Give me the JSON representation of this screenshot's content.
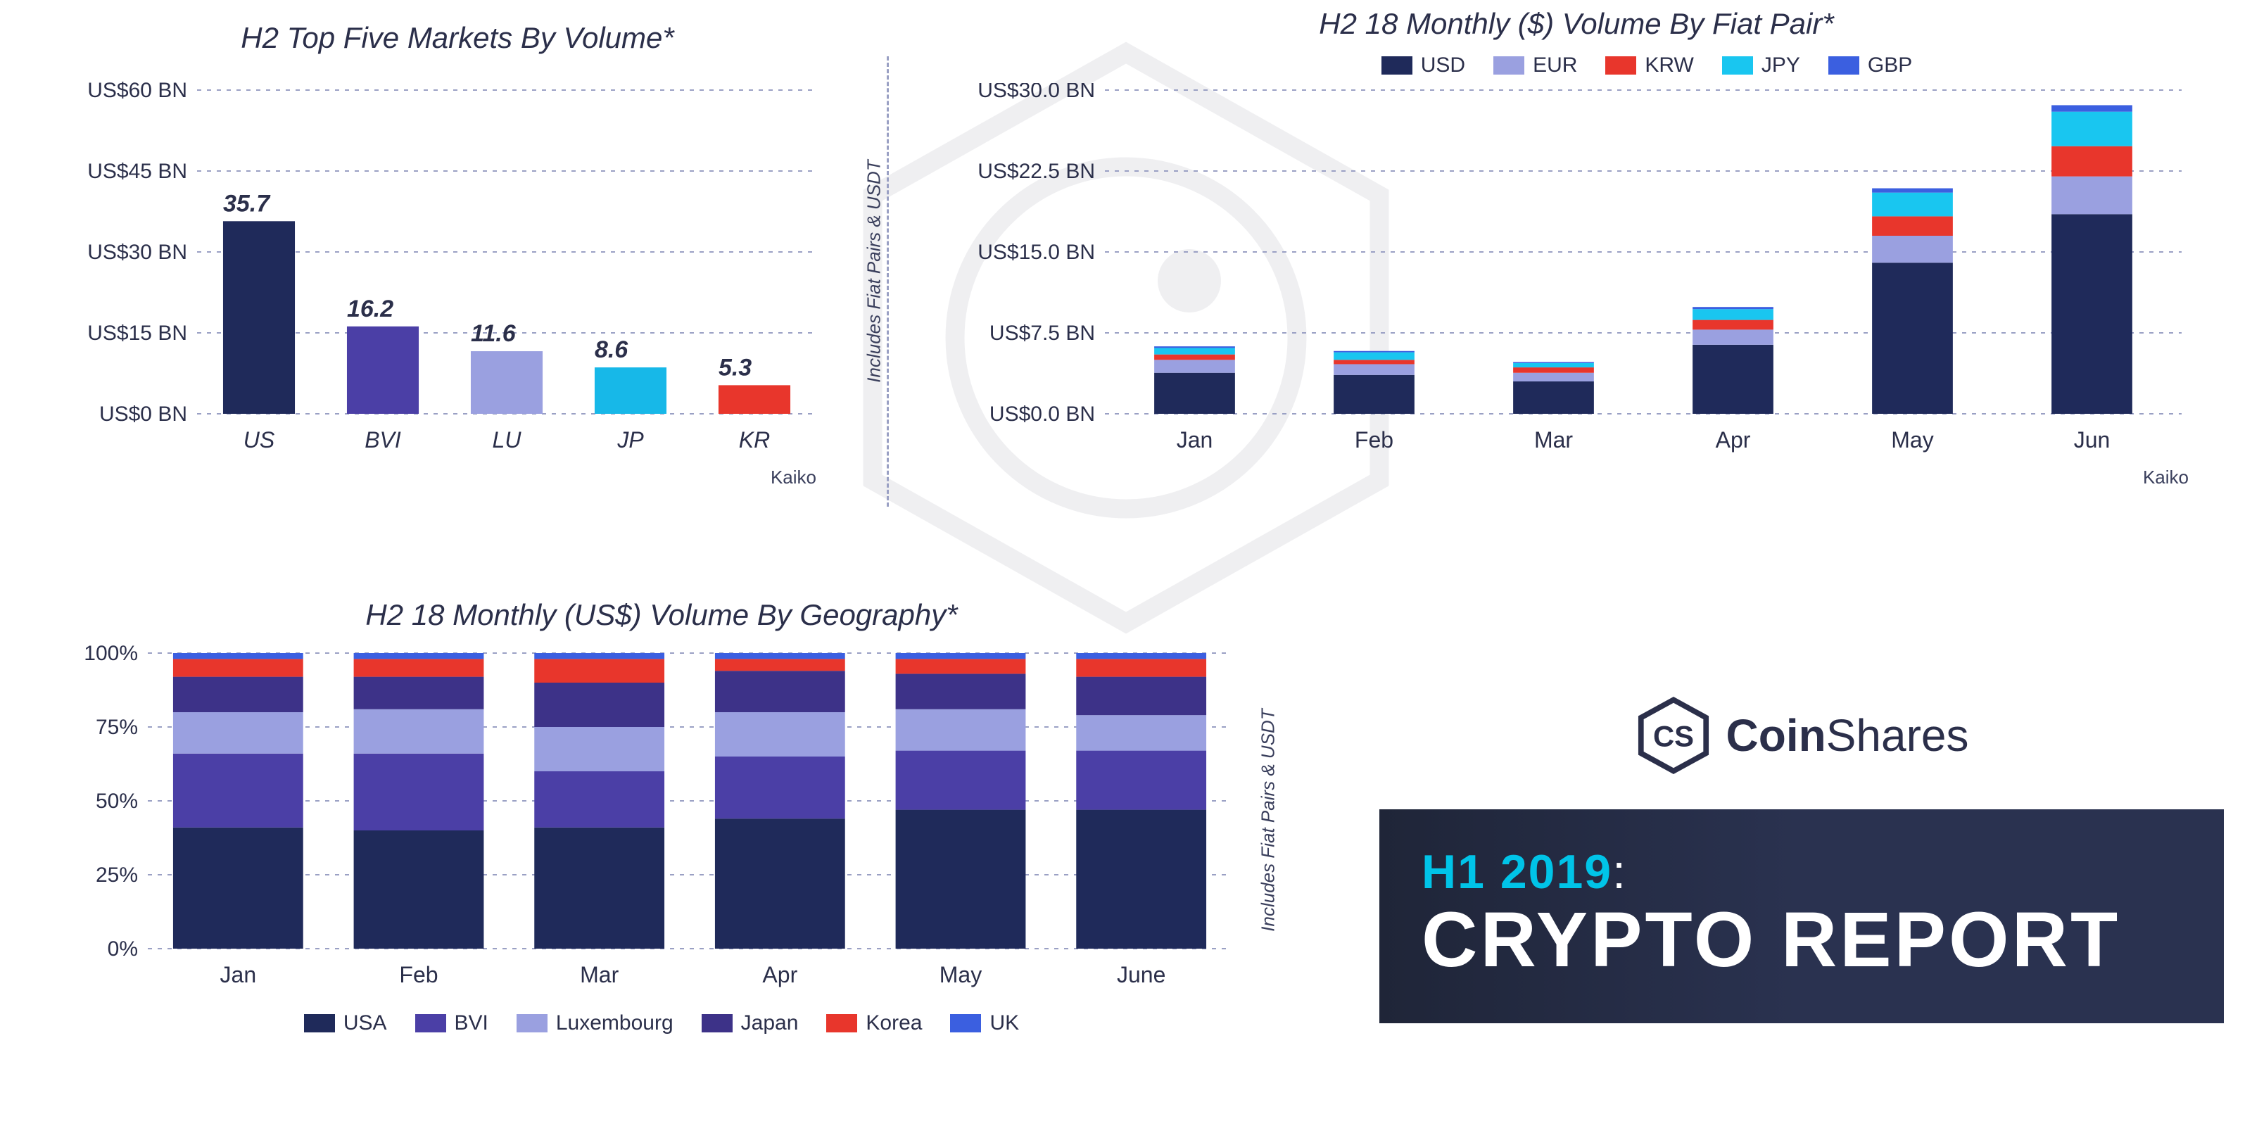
{
  "palette": {
    "navy": "#1f2a5a",
    "purple": "#4b3fa6",
    "lavender": "#9aa0e0",
    "japan": "#3d3288",
    "cyan": "#17b8e8",
    "red": "#e8362c",
    "blue": "#3b5fe0",
    "grid": "#9aa0c4",
    "text": "#2b2f4a",
    "bg": "#ffffff"
  },
  "top5": {
    "title": "H2 Top Five Markets By Volume*",
    "title_fontsize": 42,
    "source": "Kaiko",
    "side_note": "Includes Fiat Pairs & USDT",
    "ylim": [
      0,
      60
    ],
    "ytick_step": 15,
    "ytick_prefix": "US$",
    "ytick_suffix": " BN",
    "bar_width": 0.58,
    "categories": [
      "US",
      "BVI",
      "LU",
      "JP",
      "KR"
    ],
    "values": [
      35.7,
      16.2,
      11.6,
      8.6,
      5.3
    ],
    "value_labels": [
      "35.7",
      "16.2",
      "11.6",
      "8.6",
      "5.3"
    ],
    "bar_colors": [
      "#1f2a5a",
      "#4b3fa6",
      "#9aa0e0",
      "#17b8e8",
      "#e8362c"
    ],
    "category_italic": true,
    "label_fontsize": 30
  },
  "fiat": {
    "title": "H2 18 Monthly ($) Volume By Fiat Pair*",
    "title_fontsize": 42,
    "source": "Kaiko",
    "ylim": [
      0,
      30
    ],
    "ytick_step": 7.5,
    "ytick_prefix": "US$",
    "ytick_suffix": " BN",
    "ytick_decimals": 1,
    "categories": [
      "Jan",
      "Feb",
      "Mar",
      "Apr",
      "May",
      "Jun"
    ],
    "series": [
      {
        "name": "USD",
        "color": "#1f2a5a",
        "values": [
          3.8,
          3.6,
          3.0,
          6.4,
          14.0,
          18.5
        ]
      },
      {
        "name": "EUR",
        "color": "#9aa0e0",
        "values": [
          1.2,
          1.0,
          0.8,
          1.4,
          2.5,
          3.5
        ]
      },
      {
        "name": "KRW",
        "color": "#e8362c",
        "values": [
          0.5,
          0.4,
          0.5,
          0.9,
          1.8,
          2.8
        ]
      },
      {
        "name": "JPY",
        "color": "#19c6f0",
        "values": [
          0.6,
          0.7,
          0.4,
          1.0,
          2.2,
          3.2
        ]
      },
      {
        "name": "GBP",
        "color": "#3b5fe0",
        "values": [
          0.15,
          0.12,
          0.1,
          0.2,
          0.4,
          0.6
        ]
      }
    ],
    "bar_width": 0.45
  },
  "geo": {
    "title": "H2 18 Monthly (US$) Volume By Geography*",
    "title_fontsize": 42,
    "side_note": "Includes Fiat Pairs & USDT",
    "ylim": [
      0,
      100
    ],
    "ytick_step": 25,
    "ytick_suffix": "%",
    "categories": [
      "Jan",
      "Feb",
      "Mar",
      "Apr",
      "May",
      "June"
    ],
    "series": [
      {
        "name": "USA",
        "color": "#1f2a5a",
        "values": [
          41,
          40,
          41,
          44,
          47,
          47
        ]
      },
      {
        "name": "BVI",
        "color": "#4b3fa6",
        "values": [
          25,
          26,
          19,
          21,
          20,
          20
        ]
      },
      {
        "name": "Luxembourg",
        "color": "#9aa0e0",
        "values": [
          14,
          15,
          15,
          15,
          14,
          12
        ]
      },
      {
        "name": "Japan",
        "color": "#3d3288",
        "values": [
          12,
          11,
          15,
          14,
          12,
          13
        ]
      },
      {
        "name": "Korea",
        "color": "#e8362c",
        "values": [
          6,
          6,
          8,
          4,
          5,
          6
        ]
      },
      {
        "name": "UK",
        "color": "#3b5fe0",
        "values": [
          2,
          2,
          2,
          2,
          2,
          2
        ]
      }
    ],
    "bar_width": 0.72
  },
  "brand": {
    "logo_text": "CS",
    "name_bold": "Coin",
    "name_rest": "Shares",
    "line1_h1": "H1 2019",
    "line1_colon": ":",
    "line2": "CRYPTO REPORT"
  }
}
